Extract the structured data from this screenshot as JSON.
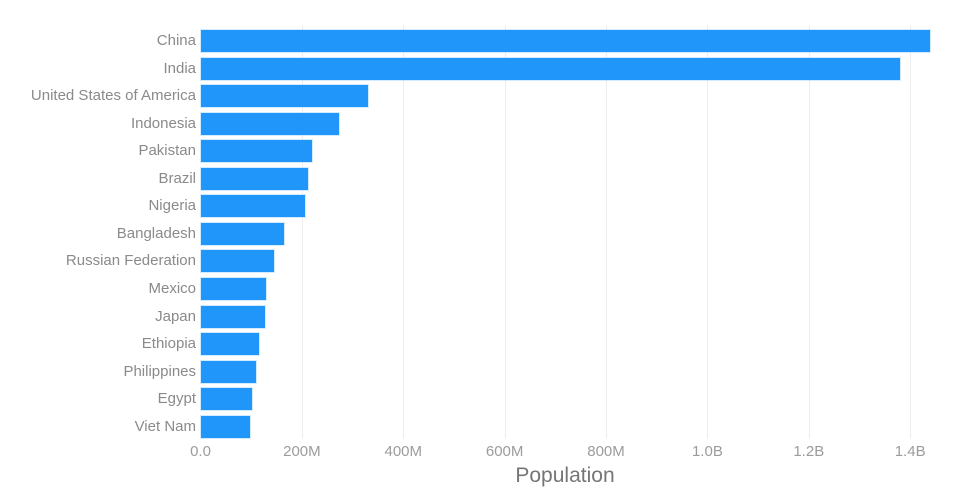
{
  "chart_data": {
    "type": "bar",
    "orientation": "horizontal",
    "title": "",
    "xlabel": "Population",
    "ylabel": "",
    "categories": [
      "China",
      "India",
      "United States of America",
      "Indonesia",
      "Pakistan",
      "Brazil",
      "Nigeria",
      "Bangladesh",
      "Russian Federation",
      "Mexico",
      "Japan",
      "Ethiopia",
      "Philippines",
      "Egypt",
      "Viet Nam"
    ],
    "values_millions": [
      1439.3,
      1380.0,
      331.0,
      273.5,
      220.9,
      212.6,
      206.1,
      164.7,
      145.9,
      128.9,
      126.5,
      115.0,
      109.6,
      102.3,
      97.3
    ],
    "x_ticks": [
      {
        "value_m": 0,
        "label": "0.0"
      },
      {
        "value_m": 200,
        "label": "200M"
      },
      {
        "value_m": 400,
        "label": "400M"
      },
      {
        "value_m": 600,
        "label": "600M"
      },
      {
        "value_m": 800,
        "label": "800M"
      },
      {
        "value_m": 1000,
        "label": "1.0B"
      },
      {
        "value_m": 1200,
        "label": "1.2B"
      },
      {
        "value_m": 1400,
        "label": "1.4B"
      }
    ],
    "xlim_m": [
      0,
      1450
    ],
    "grid": "vertical-only",
    "legend": "none",
    "colors": {
      "bar": "#2095FA",
      "gridline": "#ededed",
      "category_label": "#8a8a8a",
      "tick_label": "#9c9c9c",
      "axis_title": "#757575",
      "background": "#ffffff"
    }
  }
}
